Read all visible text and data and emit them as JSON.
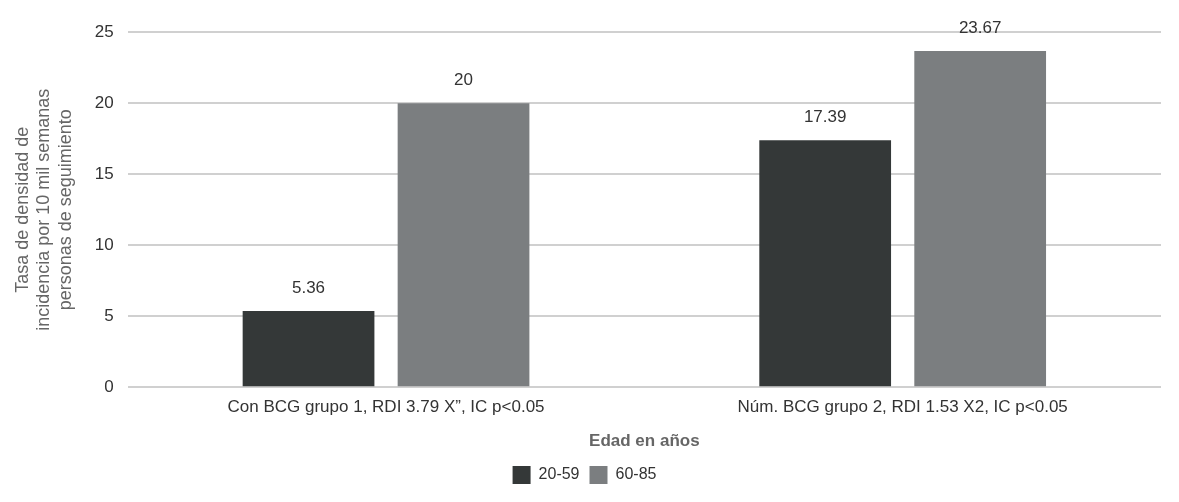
{
  "chart_data": {
    "type": "bar",
    "categories": [
      "Con BCG grupo 1, RDI 3.79 X”, IC p<0.05",
      "Núm. BCG grupo 2, RDI 1.53 X2, IC p<0.05"
    ],
    "series": [
      {
        "name": "20-59",
        "color": "#343838",
        "values": [
          5.36,
          17.39
        ]
      },
      {
        "name": "60-85",
        "color": "#7b7e80",
        "values": [
          20,
          23.67
        ]
      }
    ],
    "xlabel": "Edad en años",
    "ylabel": "Tasa de densidad de\nincidencia por 10 mil semanas\npersonas de seguimiento",
    "ylim": [
      0,
      25
    ],
    "yticks": [
      0,
      5,
      10,
      15,
      20,
      25
    ],
    "grid": "y",
    "legend": "bottom",
    "data_labels": true
  }
}
